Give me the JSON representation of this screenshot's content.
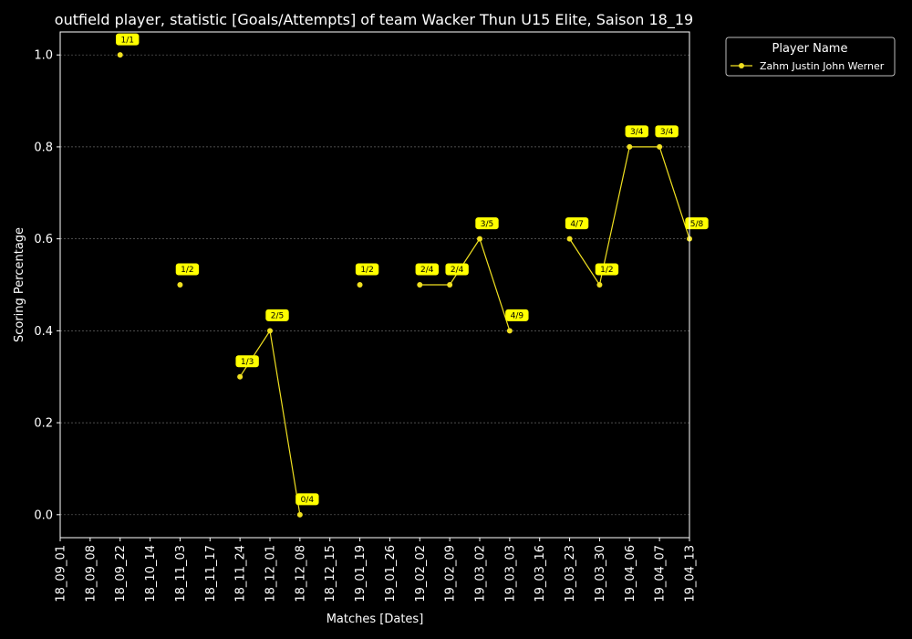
{
  "chart_data": {
    "type": "line",
    "title": "outfield player, statistic [Goals/Attempts] of team Wacker Thun U15 Elite, Saison 18_19",
    "xlabel": "Matches [Dates]",
    "ylabel": "Scoring Percentage",
    "ylim": [
      -0.05,
      1.05
    ],
    "yticks": [
      "0.0",
      "0.2",
      "0.4",
      "0.6",
      "0.8",
      "1.0"
    ],
    "categories": [
      "18_09_01",
      "18_09_08",
      "18_09_22",
      "18_10_14",
      "18_11_03",
      "18_11_17",
      "18_11_24",
      "18_12_01",
      "18_12_08",
      "18_12_15",
      "19_01_19",
      "19_01_26",
      "19_02_02",
      "19_02_09",
      "19_03_02",
      "19_03_03",
      "19_03_16",
      "19_03_23",
      "19_03_30",
      "19_04_06",
      "19_04_07",
      "19_04_13"
    ],
    "grid": "horizontal dotted",
    "legend": {
      "title": "Player Name",
      "placement": "outside-right-top"
    },
    "series": [
      {
        "name": "Zahm Justin John Werner",
        "color": "#f0e020",
        "values": [
          null,
          null,
          1.0,
          null,
          0.5,
          null,
          0.3,
          0.4,
          0.0,
          null,
          0.5,
          null,
          0.5,
          0.5,
          0.6,
          0.4,
          null,
          0.6,
          0.5,
          0.8,
          0.8,
          0.6
        ],
        "labels": [
          null,
          null,
          "1/1",
          null,
          "1/2",
          null,
          "1/3",
          "2/5",
          "0/4",
          null,
          "1/2",
          null,
          "2/4",
          "2/4",
          "3/5",
          "4/9",
          null,
          "4/7",
          "1/2",
          "3/4",
          "3/4",
          "5/8"
        ]
      }
    ],
    "annotation_color": "#ffff00"
  }
}
